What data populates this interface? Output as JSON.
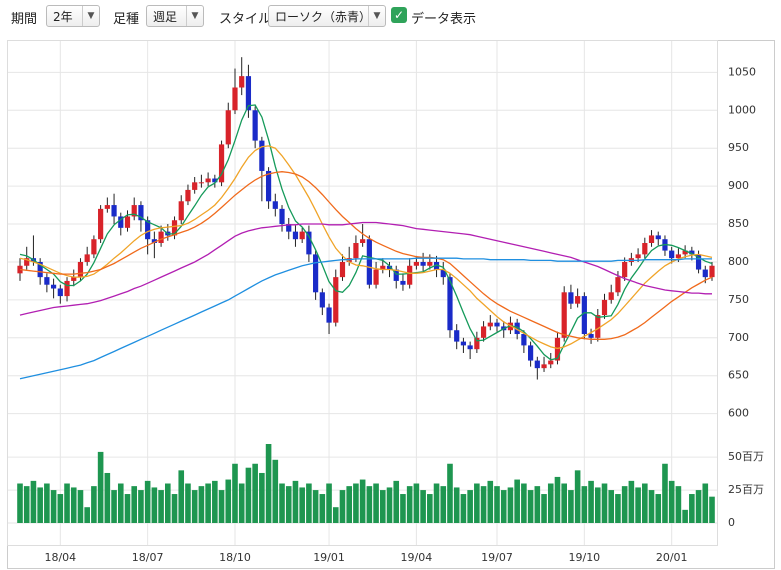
{
  "controls": {
    "period_label": "期間",
    "period": "2年",
    "interval_label": "足種",
    "interval": "週足",
    "style_label": "スタイル",
    "style": "ローソク（赤青）",
    "data_label": "データ表示"
  },
  "chart_data": {
    "type": "candlestick",
    "categories": [
      null,
      null,
      null,
      null,
      null,
      null,
      "18/04",
      null,
      null,
      null,
      null,
      null,
      null,
      null,
      null,
      null,
      null,
      null,
      null,
      "18/07",
      null,
      null,
      null,
      null,
      null,
      null,
      null,
      null,
      null,
      null,
      null,
      null,
      "18/10",
      null,
      null,
      null,
      null,
      null,
      null,
      null,
      null,
      null,
      null,
      null,
      null,
      null,
      "19/01",
      null,
      null,
      null,
      null,
      null,
      null,
      null,
      null,
      null,
      null,
      null,
      null,
      "19/04",
      null,
      null,
      null,
      null,
      null,
      null,
      null,
      null,
      null,
      null,
      null,
      "19/07",
      null,
      null,
      null,
      null,
      null,
      null,
      null,
      null,
      null,
      null,
      null,
      null,
      "19/10",
      null,
      null,
      null,
      null,
      null,
      null,
      null,
      null,
      null,
      null,
      null,
      null,
      "20/01",
      null,
      null,
      null,
      null,
      null,
      null
    ],
    "open": [
      785,
      795,
      805,
      800,
      780,
      770,
      765,
      755,
      775,
      780,
      800,
      810,
      830,
      870,
      875,
      860,
      845,
      860,
      875,
      855,
      830,
      825,
      840,
      835,
      855,
      880,
      895,
      905,
      905,
      910,
      905,
      955,
      1000,
      1030,
      1045,
      1000,
      960,
      920,
      880,
      870,
      850,
      840,
      830,
      840,
      810,
      760,
      740,
      720,
      780,
      800,
      805,
      825,
      830,
      770,
      790,
      795,
      790,
      775,
      770,
      795,
      800,
      795,
      800,
      790,
      780,
      710,
      695,
      690,
      685,
      700,
      715,
      720,
      715,
      710,
      720,
      705,
      690,
      670,
      660,
      665,
      670,
      700,
      760,
      745,
      755,
      705,
      700,
      730,
      750,
      760,
      780,
      800,
      805,
      810,
      825,
      835,
      830,
      815,
      805,
      810,
      815,
      810,
      790,
      780
    ],
    "high": [
      805,
      820,
      835,
      805,
      785,
      778,
      770,
      780,
      790,
      805,
      820,
      835,
      875,
      885,
      890,
      865,
      868,
      885,
      880,
      860,
      840,
      848,
      850,
      860,
      888,
      902,
      912,
      915,
      918,
      915,
      960,
      1010,
      1055,
      1070,
      1060,
      1005,
      965,
      925,
      890,
      875,
      858,
      848,
      845,
      848,
      815,
      765,
      745,
      790,
      810,
      820,
      835,
      850,
      835,
      800,
      805,
      800,
      795,
      785,
      805,
      808,
      812,
      810,
      808,
      800,
      785,
      718,
      700,
      695,
      708,
      722,
      730,
      725,
      722,
      728,
      725,
      710,
      695,
      675,
      675,
      680,
      708,
      768,
      770,
      765,
      760,
      712,
      738,
      758,
      770,
      788,
      806,
      812,
      818,
      832,
      842,
      840,
      835,
      820,
      818,
      822,
      820,
      815,
      795,
      800
    ],
    "low": [
      775,
      790,
      795,
      770,
      760,
      752,
      745,
      748,
      768,
      775,
      795,
      805,
      825,
      865,
      850,
      835,
      840,
      855,
      840,
      810,
      805,
      820,
      828,
      830,
      850,
      875,
      890,
      898,
      900,
      898,
      900,
      950,
      995,
      1020,
      990,
      950,
      880,
      870,
      860,
      840,
      830,
      820,
      825,
      800,
      750,
      730,
      705,
      715,
      775,
      795,
      800,
      820,
      765,
      765,
      785,
      780,
      765,
      762,
      765,
      790,
      788,
      790,
      780,
      770,
      700,
      685,
      680,
      672,
      680,
      695,
      710,
      708,
      700,
      705,
      698,
      680,
      662,
      645,
      655,
      660,
      665,
      695,
      738,
      740,
      698,
      692,
      695,
      725,
      745,
      755,
      775,
      795,
      800,
      805,
      820,
      822,
      808,
      798,
      800,
      805,
      802,
      785,
      772,
      775
    ],
    "close": [
      795,
      805,
      800,
      780,
      770,
      765,
      755,
      775,
      780,
      800,
      810,
      830,
      870,
      875,
      860,
      845,
      860,
      875,
      855,
      830,
      825,
      840,
      835,
      855,
      880,
      895,
      905,
      905,
      910,
      905,
      955,
      1000,
      1030,
      1045,
      1000,
      960,
      920,
      880,
      870,
      850,
      840,
      830,
      840,
      810,
      760,
      740,
      720,
      780,
      800,
      805,
      825,
      830,
      770,
      790,
      795,
      790,
      775,
      770,
      795,
      800,
      795,
      800,
      790,
      780,
      710,
      695,
      690,
      685,
      700,
      715,
      720,
      715,
      710,
      720,
      705,
      690,
      670,
      660,
      665,
      670,
      700,
      760,
      745,
      755,
      705,
      700,
      730,
      750,
      760,
      780,
      800,
      805,
      810,
      825,
      835,
      830,
      815,
      805,
      810,
      815,
      810,
      790,
      780,
      795
    ],
    "up_color": "#d8232a",
    "down_color": "#1a2bc8",
    "ylim": [
      560,
      1090
    ],
    "yticks": [
      600,
      650,
      700,
      750,
      800,
      850,
      900,
      950,
      1000,
      1050
    ],
    "grid": true,
    "lines": [
      {
        "color": "#159a5a",
        "values": [
          810,
          808,
          803,
          796,
          790,
          784,
          774,
          769,
          769,
          775,
          784,
          799,
          818,
          837,
          849,
          856,
          862,
          863,
          859,
          853,
          849,
          845,
          837,
          837,
          847,
          861,
          874,
          888,
          899,
          904,
          916,
          935,
          960,
          987,
          1006,
          1007,
          991,
          961,
          926,
          896,
          872,
          854,
          846,
          834,
          816,
          796,
          774,
          762,
          760,
          769,
          786,
          808,
          806,
          804,
          802,
          795,
          784,
          784,
          785,
          786,
          787,
          792,
          796,
          793,
          775,
          755,
          733,
          712,
          696,
          697,
          702,
          707,
          712,
          716,
          714,
          708,
          699,
          689,
          678,
          671,
          673,
          691,
          708,
          726,
          733,
          733,
          727,
          728,
          729,
          744,
          764,
          779,
          791,
          804,
          815,
          821,
          823,
          822,
          819,
          815,
          811,
          806,
          801,
          798
        ]
      },
      {
        "color": "#f0a428",
        "values": [
          805,
          803,
          800,
          797,
          793,
          789,
          785,
          782,
          780,
          780,
          781,
          784,
          790,
          797,
          805,
          812,
          820,
          828,
          835,
          840,
          843,
          845,
          846,
          847,
          848,
          851,
          856,
          862,
          868,
          875,
          885,
          897,
          910,
          925,
          938,
          947,
          952,
          953,
          950,
          940,
          928,
          915,
          900,
          885,
          868,
          850,
          833,
          818,
          808,
          800,
          796,
          795,
          793,
          791,
          790,
          790,
          789,
          787,
          785,
          785,
          786,
          788,
          790,
          790,
          785,
          778,
          770,
          762,
          752,
          744,
          736,
          728,
          721,
          716,
          711,
          706,
          701,
          696,
          692,
          688,
          686,
          688,
          692,
          697,
          702,
          707,
          712,
          718,
          724,
          732,
          742,
          752,
          762,
          772,
          780,
          788,
          795,
          800,
          804,
          807,
          809,
          810,
          808,
          806
        ]
      },
      {
        "color": "#f06a1c",
        "values": [
          790,
          789,
          788,
          787,
          786,
          785,
          784,
          784,
          784,
          785,
          786,
          788,
          790,
          794,
          798,
          803,
          808,
          813,
          818,
          822,
          826,
          830,
          833,
          836,
          839,
          842,
          846,
          851,
          857,
          864,
          872,
          880,
          888,
          895,
          902,
          908,
          913,
          916,
          918,
          919,
          918,
          916,
          912,
          906,
          898,
          889,
          879,
          869,
          860,
          852,
          844,
          837,
          831,
          826,
          822,
          818,
          814,
          811,
          809,
          807,
          806,
          806,
          805,
          803,
          798,
          790,
          782,
          774,
          766,
          758,
          751,
          745,
          740,
          735,
          731,
          727,
          723,
          719,
          715,
          711,
          707,
          704,
          702,
          700,
          699,
          698,
          698,
          698,
          699,
          701,
          704,
          709,
          714,
          720,
          727,
          734,
          741,
          748,
          754,
          760,
          766,
          771,
          776,
          780
        ]
      },
      {
        "color": "#b21fb2",
        "values": [
          730,
          732,
          734,
          736,
          738,
          740,
          741,
          742,
          743,
          744,
          745,
          747,
          749,
          752,
          755,
          758,
          761,
          765,
          768,
          772,
          776,
          780,
          784,
          788,
          792,
          796,
          800,
          805,
          810,
          816,
          822,
          828,
          834,
          838,
          841,
          843,
          845,
          846,
          847,
          848,
          849,
          849,
          850,
          850,
          850,
          850,
          849,
          849,
          849,
          850,
          851,
          852,
          852,
          852,
          851,
          850,
          849,
          848,
          846,
          844,
          843,
          842,
          841,
          840,
          839,
          838,
          837,
          836,
          834,
          832,
          830,
          828,
          826,
          824,
          822,
          820,
          818,
          816,
          814,
          812,
          810,
          808,
          806,
          803,
          800,
          797,
          794,
          790,
          786,
          782,
          778,
          775,
          772,
          769,
          767,
          765,
          763,
          762,
          761,
          760,
          759,
          759,
          758,
          758
        ]
      },
      {
        "color": "#1f8fe0",
        "values": [
          646,
          648,
          650,
          652,
          654,
          656,
          658,
          660,
          662,
          664,
          667,
          670,
          674,
          678,
          682,
          686,
          690,
          694,
          698,
          702,
          706,
          710,
          714,
          718,
          722,
          726,
          730,
          734,
          738,
          742,
          746,
          750,
          755,
          760,
          765,
          770,
          775,
          779,
          783,
          786,
          789,
          792,
          795,
          797,
          799,
          800,
          801,
          802,
          803,
          803,
          804,
          804,
          804,
          804,
          804,
          804,
          804,
          804,
          804,
          805,
          805,
          805,
          805,
          805,
          805,
          805,
          804,
          804,
          804,
          804,
          803,
          803,
          803,
          803,
          803,
          803,
          802,
          802,
          802,
          802,
          801,
          801,
          801,
          801,
          801,
          801,
          801,
          801,
          801,
          802,
          802,
          802,
          802,
          803,
          803,
          803,
          803,
          803,
          803,
          804,
          804,
          804,
          804,
          804
        ]
      }
    ],
    "volume": {
      "color": "#1e9650",
      "ylim": [
        0,
        60
      ],
      "yticks": [
        0,
        {
          "value": 25,
          "label": "25百万"
        },
        {
          "value": 50,
          "label": "50百万"
        }
      ],
      "values": [
        30,
        28,
        32,
        27,
        30,
        25,
        22,
        30,
        27,
        25,
        12,
        28,
        54,
        38,
        25,
        30,
        22,
        28,
        25,
        32,
        27,
        25,
        30,
        22,
        40,
        30,
        25,
        28,
        30,
        32,
        25,
        33,
        45,
        30,
        42,
        45,
        38,
        60,
        48,
        30,
        28,
        32,
        27,
        30,
        25,
        22,
        30,
        12,
        25,
        28,
        30,
        33,
        28,
        30,
        25,
        27,
        32,
        22,
        28,
        30,
        25,
        22,
        30,
        28,
        45,
        27,
        22,
        25,
        30,
        28,
        32,
        28,
        25,
        27,
        33,
        30,
        25,
        28,
        22,
        30,
        35,
        30,
        25,
        40,
        28,
        32,
        27,
        30,
        25,
        22,
        28,
        32,
        27,
        30,
        25,
        22,
        45,
        32,
        28,
        10,
        22,
        25,
        30,
        20
      ]
    }
  }
}
